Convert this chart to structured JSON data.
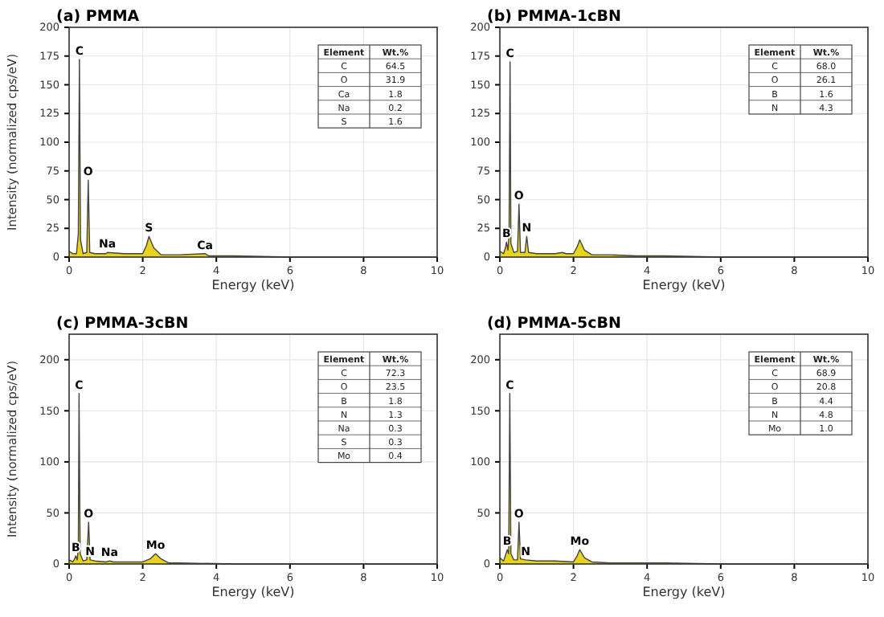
{
  "chart_data": [
    {
      "type": "area",
      "title": "(a) PMMA",
      "xlabel": "Energy (keV)",
      "ylabel": "Intensity (normalized cps/eV)",
      "x": [
        0,
        0.1,
        0.2,
        0.25,
        0.28,
        0.31,
        0.38,
        0.48,
        0.52,
        0.56,
        0.7,
        1.0,
        1.04,
        1.5,
        2.0,
        2.1,
        2.17,
        2.3,
        2.5,
        3.0,
        3.69,
        3.8,
        4.5,
        6,
        10
      ],
      "series": [
        {
          "color": "#e8d41c",
          "values": [
            5,
            3,
            3,
            20,
            172,
            15,
            3,
            4,
            67,
            4,
            3,
            3,
            4,
            3,
            3,
            10,
            18,
            8,
            2,
            2,
            3,
            1,
            1,
            0,
            0
          ]
        }
      ],
      "xlim": [
        0,
        10
      ],
      "xticks": [
        0,
        2,
        4,
        6,
        8,
        10
      ],
      "ylim": [
        0,
        200
      ],
      "yticks": [
        0,
        25,
        50,
        75,
        100,
        125,
        150,
        175,
        200
      ],
      "grid": true,
      "annotations": [
        {
          "text": "C",
          "x": 0.28,
          "y": 172
        },
        {
          "text": "O",
          "x": 0.52,
          "y": 67
        },
        {
          "text": "Na",
          "x": 1.04,
          "y": 4
        },
        {
          "text": "S",
          "x": 2.17,
          "y": 18
        },
        {
          "text": "Ca",
          "x": 3.69,
          "y": 3
        },
        "Element",
        "Wt.%",
        "C",
        "64.5",
        "O",
        "31.9",
        "Ca",
        "1.8",
        "Na",
        "0.2",
        "S",
        "1.6"
      ]
    },
    {
      "type": "area",
      "title": "(b) PMMA-1cBN",
      "xlabel": "Energy (keV)",
      "x": [
        0,
        0.1,
        0.15,
        0.18,
        0.22,
        0.25,
        0.277,
        0.3,
        0.38,
        0.48,
        0.52,
        0.56,
        0.68,
        0.73,
        0.78,
        1.0,
        1.5,
        1.7,
        1.8,
        2.0,
        2.1,
        2.17,
        2.3,
        2.5,
        3.0,
        3.7,
        4.5,
        6,
        10
      ],
      "series": [
        {
          "color": "#e8d41c",
          "values": [
            5,
            3,
            8,
            13,
            6,
            20,
            170,
            12,
            4,
            5,
            46,
            4,
            4,
            18,
            4,
            3,
            3,
            4,
            3,
            3,
            9,
            15,
            6,
            2,
            2,
            1,
            1,
            0,
            0
          ]
        }
      ],
      "xlim": [
        0,
        10
      ],
      "xticks": [
        0,
        2,
        4,
        6,
        8,
        10
      ],
      "ylim": [
        0,
        200
      ],
      "yticks": [
        0,
        25,
        50,
        75,
        100,
        125,
        150,
        175,
        200
      ],
      "grid": true,
      "annotations": [
        {
          "text": "C",
          "x": 0.277,
          "y": 170
        },
        {
          "text": "O",
          "x": 0.52,
          "y": 46
        },
        {
          "text": "B",
          "x": 0.18,
          "y": 13
        },
        {
          "text": "N",
          "x": 0.73,
          "y": 18
        },
        "Element",
        "Wt.%",
        "C",
        "68.0",
        "O",
        "26.1",
        "B",
        "1.6",
        "N",
        "4.3"
      ]
    },
    {
      "type": "area",
      "title": "(c) PMMA-3cBN",
      "xlabel": "Energy (keV)",
      "ylabel": "Intensity (normalized cps/eV)",
      "x": [
        0,
        0.1,
        0.15,
        0.18,
        0.22,
        0.25,
        0.27,
        0.3,
        0.38,
        0.48,
        0.53,
        0.57,
        0.7,
        1.0,
        1.1,
        1.2,
        1.5,
        1.8,
        2.0,
        2.2,
        2.35,
        2.5,
        2.7,
        3.0,
        4.5,
        6,
        10
      ],
      "series": [
        {
          "color": "#e8d41c",
          "values": [
            4,
            2,
            5,
            8,
            4,
            15,
            167,
            10,
            3,
            4,
            41,
            4,
            3,
            2,
            3,
            2,
            2,
            2,
            2,
            5,
            10,
            5,
            1,
            1,
            0,
            0,
            0
          ]
        }
      ],
      "xlim": [
        0,
        10
      ],
      "xticks": [
        0,
        2,
        4,
        6,
        8,
        10
      ],
      "ylim": [
        0,
        225
      ],
      "yticks": [
        0,
        50,
        100,
        150,
        200
      ],
      "grid": true,
      "annotations": [
        {
          "text": "C",
          "x": 0.27,
          "y": 167
        },
        {
          "text": "O",
          "x": 0.53,
          "y": 41
        },
        {
          "text": "B",
          "x": 0.18,
          "y": 8
        },
        {
          "text": "N",
          "x": 0.57,
          "y": 4
        },
        {
          "text": "Na",
          "x": 1.1,
          "y": 3
        },
        {
          "text": "Mo",
          "x": 2.35,
          "y": 10
        },
        "Element",
        "Wt.%",
        "C",
        "72.3",
        "O",
        "23.5",
        "B",
        "1.8",
        "N",
        "1.3",
        "Na",
        "0.3",
        "S",
        "0.3",
        "Mo",
        "0.4"
      ]
    },
    {
      "type": "area",
      "title": "(d) PMMA-5cBN",
      "xlabel": "Energy (keV)",
      "x": [
        0,
        0.1,
        0.15,
        0.2,
        0.24,
        0.27,
        0.3,
        0.38,
        0.48,
        0.52,
        0.56,
        0.7,
        1.0,
        1.5,
        2.0,
        2.1,
        2.17,
        2.3,
        2.5,
        3.0,
        4.5,
        6,
        10
      ],
      "series": [
        {
          "color": "#e8d41c",
          "values": [
            6,
            3,
            8,
            14,
            10,
            167,
            10,
            4,
            4,
            41,
            5,
            4,
            3,
            3,
            2,
            8,
            14,
            6,
            2,
            1,
            1,
            0,
            0
          ]
        }
      ],
      "xlim": [
        0,
        10
      ],
      "xticks": [
        0,
        2,
        4,
        6,
        8,
        10
      ],
      "ylim": [
        0,
        225
      ],
      "yticks": [
        0,
        50,
        100,
        150,
        200
      ],
      "grid": true,
      "annotations": [
        {
          "text": "C",
          "x": 0.27,
          "y": 167
        },
        {
          "text": "O",
          "x": 0.52,
          "y": 41
        },
        {
          "text": "B",
          "x": 0.2,
          "y": 14
        },
        {
          "text": "N",
          "x": 0.7,
          "y": 4
        },
        {
          "text": "Mo",
          "x": 2.17,
          "y": 14
        },
        "Element",
        "Wt.%",
        "C",
        "68.9",
        "O",
        "20.8",
        "B",
        "4.4",
        "N",
        "4.8",
        "Mo",
        "1.0"
      ]
    }
  ]
}
